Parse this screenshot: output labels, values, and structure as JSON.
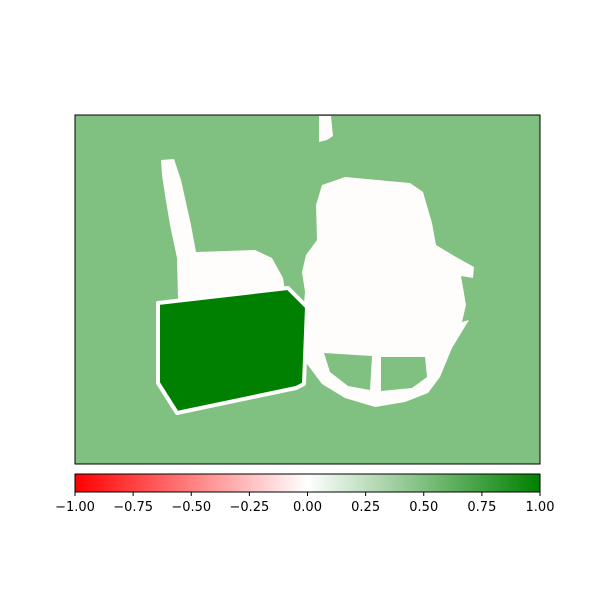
{
  "chart_data": {
    "type": "heatmap",
    "title": "",
    "xlabel": "",
    "ylabel": "",
    "axes_ticks_visible": false,
    "grid": false,
    "background_value": 0.5,
    "regions": [
      {
        "name": "",
        "value": 0.0,
        "description_shape": "white silhouette of chairs"
      },
      {
        "name": "",
        "value": 1.0,
        "description_shape": "dark green box"
      }
    ],
    "colorbar": {
      "orientation": "horizontal",
      "placement": "bottom",
      "range": [
        -1.0,
        1.0
      ],
      "colormap": [
        "#ff0000",
        "#ffffff",
        "#008000"
      ],
      "ticks": [
        -1.0,
        -0.75,
        -0.5,
        -0.25,
        0.0,
        0.25,
        0.5,
        0.75,
        1.0
      ],
      "tick_labels": [
        "−1.00",
        "−0.75",
        "−0.50",
        "−0.25",
        "0.00",
        "0.25",
        "0.50",
        "0.75",
        "1.00"
      ]
    }
  },
  "colors": {
    "frame": "#000000",
    "low": "#ff0000",
    "mid": "#ffffff",
    "high": "#008000",
    "neutral_fill": "#fffcfc",
    "box_outline": "#ffffff"
  }
}
